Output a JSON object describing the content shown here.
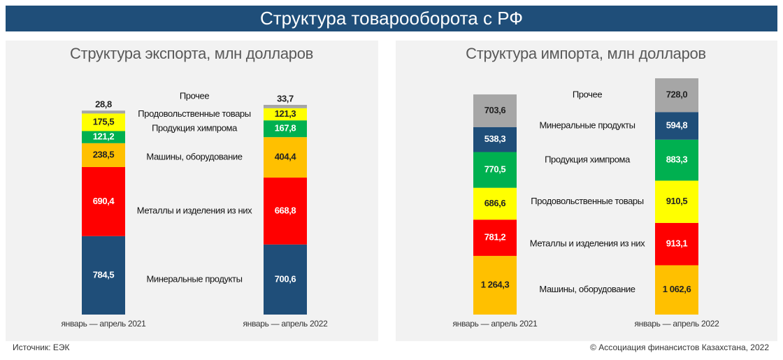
{
  "title": "Структура товарооборота с РФ",
  "source": "Источник: ЕЭК",
  "copyright": "© Ассоциация финансистов Казахстана, 2022",
  "chart_data": [
    {
      "type": "stacked_bar",
      "title": "Структура экспорта, млн долларов",
      "categories": [
        "январь — апрель 2021",
        "январь — апрель 2022"
      ],
      "series": [
        {
          "name": "Минеральные продукты",
          "color": "#1f4e79",
          "values": [
            784.5,
            700.6
          ],
          "value_labels": [
            "784,5",
            "700,6"
          ]
        },
        {
          "name": "Металлы и изделения из них",
          "color": "#ff0000",
          "values": [
            690.4,
            668.8
          ],
          "value_labels": [
            "690,4",
            "668,8"
          ]
        },
        {
          "name": "Машины, оборудование",
          "color": "#ffc000",
          "values": [
            238.5,
            404.4
          ],
          "value_labels": [
            "238,5",
            "404,4"
          ]
        },
        {
          "name": "Продукция химпрома",
          "color": "#00b050",
          "values": [
            121.2,
            167.8
          ],
          "value_labels": [
            "121,2",
            "167,8"
          ]
        },
        {
          "name": "Продовольственные товары",
          "color": "#ffff00",
          "values": [
            175.5,
            121.3
          ],
          "value_labels": [
            "175,5",
            "121,3"
          ]
        },
        {
          "name": "Прочее",
          "color": "#a6a6a6",
          "values": [
            28.8,
            33.7
          ],
          "value_labels": [
            "28,8",
            "33,7"
          ]
        }
      ]
    },
    {
      "type": "stacked_bar",
      "title": "Структура импорта, млн долларов",
      "categories": [
        "январь — апрель 2021",
        "январь — апрель 2022"
      ],
      "series": [
        {
          "name": "Машины, оборудование",
          "color": "#ffc000",
          "values": [
            1264.3,
            1062.6
          ],
          "value_labels": [
            "1 264,3",
            "1 062,6"
          ]
        },
        {
          "name": "Металлы и изделения из них",
          "color": "#ff0000",
          "values": [
            781.2,
            913.1
          ],
          "value_labels": [
            "781,2",
            "913,1"
          ]
        },
        {
          "name": "Продовольственные товары",
          "color": "#ffff00",
          "values": [
            686.6,
            910.5
          ],
          "value_labels": [
            "686,6",
            "910,5"
          ]
        },
        {
          "name": "Продукция химпрома",
          "color": "#00b050",
          "values": [
            770.5,
            883.3
          ],
          "value_labels": [
            "770,5",
            "883,3"
          ]
        },
        {
          "name": "Минеральные продукты",
          "color": "#1f4e79",
          "values": [
            538.3,
            594.8
          ],
          "value_labels": [
            "538,3",
            "594,8"
          ]
        },
        {
          "name": "Прочее",
          "color": "#a6a6a6",
          "values": [
            703.6,
            728.0
          ],
          "value_labels": [
            "703,6",
            "728,0"
          ]
        }
      ]
    }
  ]
}
